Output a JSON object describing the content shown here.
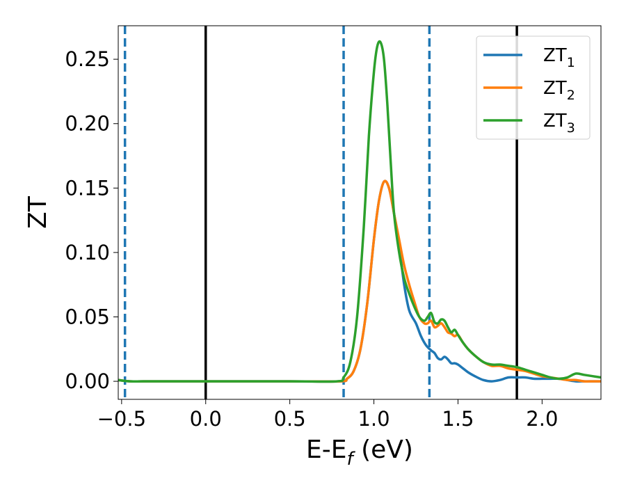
{
  "chart_data": {
    "type": "line",
    "xlabel": "E-E",
    "xlabel_sub": "f",
    "xlabel_unit": " (eV)",
    "ylabel": "ZT",
    "xlim": [
      -0.52,
      2.35
    ],
    "ylim": [
      -0.014,
      0.276
    ],
    "xticks": [
      -0.5,
      0.0,
      0.5,
      1.0,
      1.5,
      2.0
    ],
    "xtick_labels": [
      "−0.5",
      "0.0",
      "0.5",
      "1.0",
      "1.5",
      "2.0"
    ],
    "yticks": [
      0.0,
      0.05,
      0.1,
      0.15,
      0.2,
      0.25
    ],
    "ytick_labels": [
      "0.00",
      "0.05",
      "0.10",
      "0.15",
      "0.20",
      "0.25"
    ],
    "grid": false,
    "legend_position": "top-right",
    "vlines_solid": [
      0.0,
      1.85
    ],
    "vlines_dashed": [
      -0.48,
      0.82,
      1.33
    ],
    "vline_solid_color": "#000000",
    "vline_dashed_color": "#1f77b4",
    "series": [
      {
        "name": "ZT",
        "sub": "1",
        "color": "#1f77b4",
        "x": [
          -0.52,
          -0.45,
          -0.3,
          0.0,
          0.5,
          0.8,
          0.84,
          0.88,
          0.92,
          0.96,
          1.0,
          1.03,
          1.06,
          1.09,
          1.12,
          1.15,
          1.18,
          1.21,
          1.25,
          1.28,
          1.31,
          1.34,
          1.36,
          1.38,
          1.4,
          1.42,
          1.44,
          1.46,
          1.48,
          1.5,
          1.53,
          1.56,
          1.6,
          1.65,
          1.7,
          1.75,
          1.8,
          1.85,
          1.9,
          1.95,
          2.0,
          2.05,
          2.1,
          2.15,
          2.2,
          2.25,
          2.3,
          2.35
        ],
        "y": [
          0.001,
          0.0,
          0.0,
          0.0,
          0.0,
          0.0,
          0.002,
          0.008,
          0.025,
          0.06,
          0.11,
          0.14,
          0.155,
          0.15,
          0.13,
          0.105,
          0.075,
          0.055,
          0.045,
          0.035,
          0.028,
          0.024,
          0.022,
          0.018,
          0.017,
          0.019,
          0.017,
          0.014,
          0.014,
          0.013,
          0.01,
          0.007,
          0.004,
          0.001,
          0.0,
          0.001,
          0.003,
          0.003,
          0.003,
          0.002,
          0.002,
          0.002,
          0.002,
          0.001,
          0.0,
          0.0,
          0.0,
          0.0
        ]
      },
      {
        "name": "ZT",
        "sub": "2",
        "color": "#ff7f0e",
        "x": [
          -0.52,
          -0.45,
          -0.3,
          0.0,
          0.5,
          0.8,
          0.84,
          0.88,
          0.92,
          0.96,
          1.0,
          1.03,
          1.06,
          1.09,
          1.12,
          1.15,
          1.18,
          1.21,
          1.24,
          1.27,
          1.3,
          1.32,
          1.34,
          1.36,
          1.38,
          1.4,
          1.42,
          1.44,
          1.46,
          1.48,
          1.5,
          1.53,
          1.56,
          1.6,
          1.65,
          1.7,
          1.75,
          1.8,
          1.85,
          1.9,
          1.95,
          2.0,
          2.05,
          2.1,
          2.15,
          2.2,
          2.25,
          2.3,
          2.35
        ],
        "y": [
          0.001,
          0.0,
          0.0,
          0.0,
          0.0,
          0.0,
          0.002,
          0.008,
          0.025,
          0.06,
          0.11,
          0.14,
          0.155,
          0.15,
          0.13,
          0.11,
          0.09,
          0.075,
          0.062,
          0.05,
          0.045,
          0.045,
          0.047,
          0.042,
          0.043,
          0.045,
          0.042,
          0.038,
          0.037,
          0.035,
          0.036,
          0.03,
          0.025,
          0.02,
          0.015,
          0.012,
          0.012,
          0.01,
          0.009,
          0.008,
          0.006,
          0.004,
          0.003,
          0.002,
          0.001,
          0.001,
          0.0,
          0.0,
          0.0
        ]
      },
      {
        "name": "ZT",
        "sub": "3",
        "color": "#2ca02c",
        "x": [
          -0.52,
          -0.45,
          -0.3,
          0.0,
          0.5,
          0.78,
          0.82,
          0.86,
          0.9,
          0.94,
          0.97,
          1.0,
          1.02,
          1.04,
          1.06,
          1.08,
          1.1,
          1.12,
          1.15,
          1.18,
          1.21,
          1.24,
          1.27,
          1.3,
          1.32,
          1.34,
          1.36,
          1.38,
          1.4,
          1.42,
          1.44,
          1.46,
          1.48,
          1.5,
          1.53,
          1.56,
          1.6,
          1.65,
          1.7,
          1.75,
          1.8,
          1.85,
          1.9,
          1.95,
          2.0,
          2.05,
          2.1,
          2.15,
          2.2,
          2.25,
          2.3,
          2.35
        ],
        "y": [
          0.001,
          0.0,
          0.0,
          0.0,
          0.0,
          0.0,
          0.003,
          0.015,
          0.05,
          0.12,
          0.19,
          0.24,
          0.26,
          0.263,
          0.25,
          0.215,
          0.17,
          0.13,
          0.1,
          0.08,
          0.068,
          0.058,
          0.05,
          0.047,
          0.05,
          0.053,
          0.046,
          0.045,
          0.048,
          0.047,
          0.042,
          0.038,
          0.04,
          0.036,
          0.03,
          0.025,
          0.02,
          0.015,
          0.013,
          0.013,
          0.012,
          0.011,
          0.009,
          0.007,
          0.005,
          0.003,
          0.002,
          0.003,
          0.006,
          0.005,
          0.004,
          0.003
        ]
      }
    ]
  }
}
